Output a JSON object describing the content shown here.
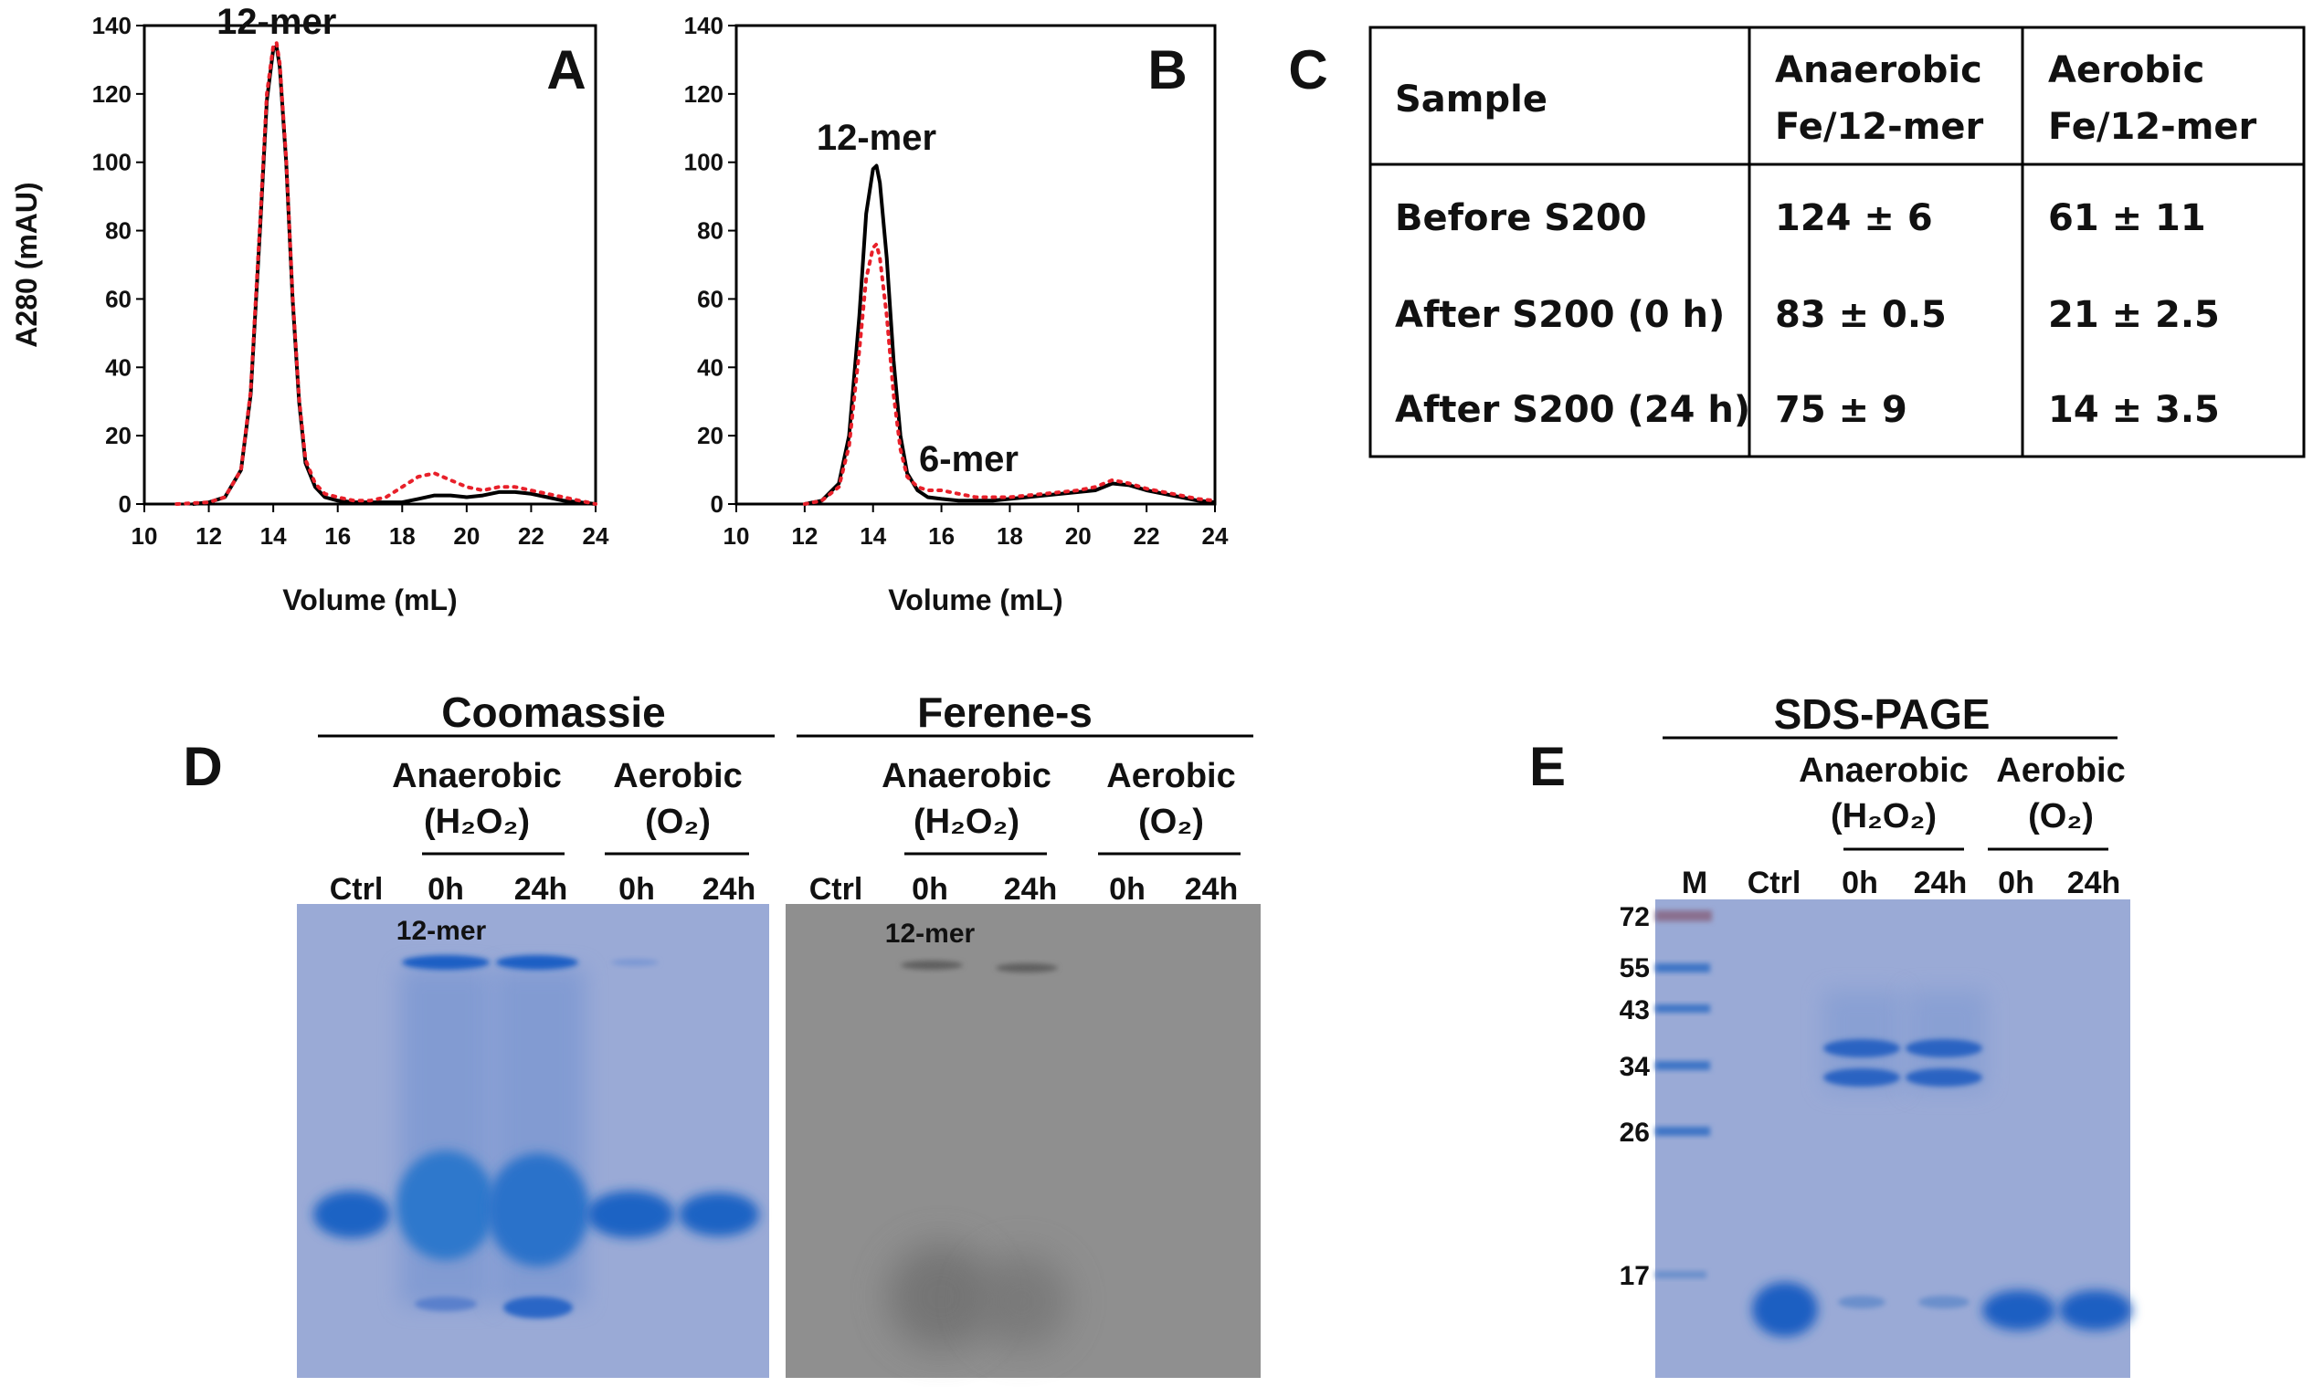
{
  "panel_labels": {
    "a": "A",
    "b": "B",
    "c": "C",
    "d": "D",
    "e": "E"
  },
  "chart_data": [
    {
      "type": "line",
      "panel": "A",
      "xlabel": "Volume (mL)",
      "ylabel": "A280 (mAU)",
      "xlim": [
        10,
        24
      ],
      "ylim": [
        0,
        140
      ],
      "x_ticks": [
        10,
        12,
        14,
        16,
        18,
        20,
        22,
        24
      ],
      "y_ticks": [
        0,
        20,
        40,
        60,
        80,
        100,
        120,
        140
      ],
      "annotations": [
        {
          "text": "12-mer",
          "x": 14.1,
          "y": 136
        }
      ],
      "series": [
        {
          "color": "#000000",
          "style": "solid",
          "x": [
            11.5,
            12.0,
            12.5,
            13.0,
            13.3,
            13.6,
            13.8,
            14.0,
            14.1,
            14.2,
            14.4,
            14.6,
            14.8,
            15.0,
            15.3,
            15.6,
            16.0,
            16.5,
            17.0,
            17.5,
            18.0,
            18.5,
            19.0,
            19.5,
            20.0,
            20.5,
            21.0,
            21.5,
            22.0,
            22.5,
            23.0,
            23.5,
            24.0
          ],
          "y": [
            0,
            0.5,
            2,
            10,
            32,
            82,
            118,
            133,
            134,
            128,
            100,
            60,
            30,
            12,
            5,
            2,
            1,
            0.5,
            0.5,
            0.5,
            0.5,
            1.5,
            2.5,
            2.5,
            2,
            2.5,
            3.5,
            3.5,
            3,
            2,
            1,
            0.5,
            0
          ]
        },
        {
          "color": "#e8202a",
          "style": "dotted",
          "x": [
            11.0,
            12.0,
            12.5,
            13.0,
            13.3,
            13.6,
            13.8,
            14.0,
            14.1,
            14.2,
            14.4,
            14.6,
            14.8,
            15.0,
            15.3,
            15.6,
            16.0,
            16.5,
            17.0,
            17.5,
            18.0,
            18.5,
            19.0,
            19.5,
            20.0,
            20.5,
            21.0,
            21.5,
            22.0,
            22.5,
            23.0,
            23.5,
            24.0
          ],
          "y": [
            0,
            0.5,
            2,
            10,
            33,
            84,
            120,
            134,
            135,
            129,
            101,
            61,
            31,
            13,
            6,
            3,
            2,
            1,
            1,
            2,
            5,
            8,
            9,
            7,
            5,
            4,
            5,
            5,
            4,
            3,
            2,
            1,
            0
          ]
        }
      ]
    },
    {
      "type": "line",
      "panel": "B",
      "xlabel": "Volume (mL)",
      "ylabel": "",
      "xlim": [
        10,
        24
      ],
      "ylim": [
        0,
        140
      ],
      "x_ticks": [
        10,
        12,
        14,
        16,
        18,
        20,
        22,
        24
      ],
      "y_ticks": [
        0,
        20,
        40,
        60,
        80,
        100,
        120,
        140
      ],
      "annotations": [
        {
          "text": "12-mer",
          "x": 14.1,
          "y": 102
        },
        {
          "text": "6-mer",
          "x": 16.8,
          "y": 8
        }
      ],
      "series": [
        {
          "color": "#000000",
          "style": "solid",
          "x": [
            12.0,
            12.5,
            13.0,
            13.3,
            13.6,
            13.8,
            14.0,
            14.1,
            14.2,
            14.4,
            14.6,
            14.8,
            15.0,
            15.3,
            15.6,
            16.0,
            16.5,
            17.0,
            17.5,
            18.0,
            18.5,
            19.0,
            19.5,
            20.0,
            20.5,
            21.0,
            21.5,
            22.0,
            22.5,
            23.0,
            23.5,
            24.0
          ],
          "y": [
            0,
            1,
            6,
            20,
            55,
            85,
            98,
            99,
            94,
            72,
            42,
            20,
            9,
            4,
            2,
            1.5,
            1,
            1,
            1,
            1.5,
            2,
            2.5,
            3,
            3.5,
            4,
            6,
            5.5,
            4,
            3,
            2,
            1,
            0.5
          ]
        },
        {
          "color": "#e8202a",
          "style": "dotted",
          "x": [
            12.0,
            12.5,
            13.0,
            13.3,
            13.6,
            13.8,
            14.0,
            14.1,
            14.2,
            14.4,
            14.6,
            14.8,
            15.0,
            15.3,
            15.6,
            16.0,
            16.5,
            17.0,
            17.5,
            18.0,
            18.5,
            19.0,
            19.5,
            20.0,
            20.5,
            21.0,
            21.5,
            22.0,
            22.5,
            23.0,
            23.5,
            24.0
          ],
          "y": [
            0,
            1,
            5,
            17,
            45,
            66,
            75,
            76,
            72,
            55,
            32,
            16,
            8,
            5,
            4,
            4,
            3,
            2,
            2,
            2,
            2.5,
            3,
            3.5,
            4,
            5,
            7,
            6,
            4.5,
            3.5,
            2.5,
            1.5,
            1
          ]
        }
      ]
    },
    {
      "type": "table",
      "panel": "C",
      "header": [
        [
          "Sample"
        ],
        [
          "Anaerobic",
          "Fe/12-mer"
        ],
        [
          "Aerobic",
          "Fe/12-mer"
        ]
      ],
      "rows": [
        [
          "Before S200",
          "124 ± 6",
          "61 ± 11"
        ],
        [
          "After S200 (0 h)",
          "83 ± 0.5",
          "21 ± 2.5"
        ],
        [
          "After S200 (24 h)",
          "75 ± 9",
          "14 ± 3.5"
        ]
      ]
    }
  ],
  "gel_d": {
    "coomassie_title": "Coomassie",
    "ferene_title": "Ferene-s",
    "anaerobic_label": "Anaerobic",
    "anaerobic_sub": "(H₂O₂)",
    "aerobic_label": "Aerobic",
    "aerobic_sub": "(O₂)",
    "lanes": [
      "Ctrl",
      "0h",
      "24h",
      "0h",
      "24h"
    ],
    "band_label": "12-mer"
  },
  "gel_e": {
    "title": "SDS-PAGE",
    "anaerobic_label": "Anaerobic",
    "anaerobic_sub": "(H₂O₂)",
    "aerobic_label": "Aerobic",
    "aerobic_sub": "(O₂)",
    "lanes": [
      "M",
      "Ctrl",
      "0h",
      "24h",
      "0h",
      "24h"
    ],
    "mw_markers": [
      "72",
      "55",
      "43",
      "34",
      "26",
      "17"
    ]
  },
  "colors": {
    "gel_blue": "#9aaad6",
    "gel_band": "#2a64c2",
    "ferene_bg": "#8f8f8f",
    "dotted_series": "#e8202a"
  }
}
